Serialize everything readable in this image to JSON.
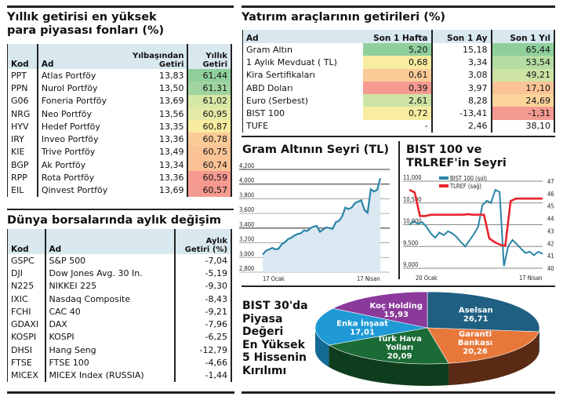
{
  "funds": {
    "title_line1": "Yıllık getirisi en yüksek",
    "title_line2": "para piyasası fonları (%)",
    "headers": {
      "kod": "Kod",
      "ad": "Ad",
      "ytd_1": "Yılbaşından",
      "ytd_2": "Getiri",
      "annual_1": "Yıllık",
      "annual_2": "Getiri"
    },
    "rows": [
      {
        "kod": "PPT",
        "ad": "Atlas Portföy",
        "ytd": "13,83",
        "annual": "61,44",
        "color": "#8fcf9c"
      },
      {
        "kod": "PPN",
        "ad": "Nurol Portföy",
        "ytd": "13,50",
        "annual": "61,31",
        "color": "#9fd4a0"
      },
      {
        "kod": "G06",
        "ad": "Foneria Portföy",
        "ytd": "13,69",
        "annual": "61,02",
        "color": "#d6e8a6"
      },
      {
        "kod": "NRG",
        "ad": "Neo Portföy",
        "ytd": "13,56",
        "annual": "60,95",
        "color": "#e3eba6"
      },
      {
        "kod": "HYV",
        "ad": "Hedef Portföy",
        "ytd": "13,35",
        "annual": "60,87",
        "color": "#f8eca0"
      },
      {
        "kod": "IRY",
        "ad": "Inveo Portföy",
        "ytd": "13,36",
        "annual": "60,78",
        "color": "#fbcb98"
      },
      {
        "kod": "KIE",
        "ad": "Trive Portföy",
        "ytd": "13,49",
        "annual": "60,75",
        "color": "#fbc497"
      },
      {
        "kod": "BGP",
        "ad": "Ak Portföy",
        "ytd": "13,34",
        "annual": "60,74",
        "color": "#fbc296"
      },
      {
        "kod": "RPP",
        "ad": "Rota Portföy",
        "ytd": "13,36",
        "annual": "60,59",
        "color": "#f69a90"
      },
      {
        "kod": "EIL",
        "ad": "Qinvest Portföy",
        "ytd": "13,69",
        "annual": "60,57",
        "color": "#f59a90"
      }
    ]
  },
  "world": {
    "title": "Dünya borsalarında aylık değişim",
    "headers": {
      "kod": "Kod",
      "ad": "Ad",
      "ret_1": "Aylık",
      "ret_2": "Getiri (%)"
    },
    "rows": [
      {
        "kod": "GSPC",
        "ad": "S&P 500",
        "ret": "-7,04"
      },
      {
        "kod": "DJI",
        "ad": "Dow Jones Avg. 30 In.",
        "ret": "-5,19"
      },
      {
        "kod": "N225",
        "ad": "NIKKEI 225",
        "ret": "-9,30"
      },
      {
        "kod": "IXIC",
        "ad": "Nasdaq Composite",
        "ret": "-8,43"
      },
      {
        "kod": "FCHI",
        "ad": "CAC 40",
        "ret": "-9,21"
      },
      {
        "kod": "GDAXI",
        "ad": "DAX",
        "ret": "-7,96"
      },
      {
        "kod": "KOSPI",
        "ad": "KOSPI",
        "ret": "-6,25"
      },
      {
        "kod": "DHSI",
        "ad": "Hang Seng",
        "ret": "-12,79"
      },
      {
        "kod": "FTSE",
        "ad": "FTSE 100",
        "ret": "-4,66"
      },
      {
        "kod": "MICEX",
        "ad": "MICEX Index (RUSSIA)",
        "ret": "-1,44"
      }
    ]
  },
  "instruments": {
    "title": "Yatırım araçlarının getirileri (%)",
    "headers": {
      "ad": "Ad",
      "w": "Son 1 Hafta",
      "m": "Son 1 Ay",
      "y": "Son 1 Yıl"
    },
    "rows": [
      {
        "ad": "Gram Altın",
        "w": "5,20",
        "m": "15,18",
        "y": "65,44",
        "wc": "#8fcf9c",
        "yc": "#8fcf9c"
      },
      {
        "ad": "1 Aylık Mevduat ( TL)",
        "w": "0,68",
        "m": "3,34",
        "y": "53,54",
        "wc": "#f8eca0",
        "yc": "#b5dca2"
      },
      {
        "ad": "Kira Sertifikaları",
        "w": "0,61",
        "m": "3,08",
        "y": "49,21",
        "wc": "#fbcb98",
        "yc": "#cde4a4"
      },
      {
        "ad": "ABD Doları",
        "w": "0,39",
        "m": "3,97",
        "y": "17,10",
        "wc": "#f59a90",
        "yc": "#fbc497"
      },
      {
        "ad": "Euro (Serbest)",
        "w": "2,61",
        "m": "8,28",
        "y": "24,69",
        "wc": "#cde4a4",
        "yc": "#fbd49a"
      },
      {
        "ad": "BIST 100",
        "w": "0,72",
        "m": "-13,41",
        "y": "-1,31",
        "wc": "#f8eca0",
        "yc": "#f59a90"
      },
      {
        "ad": "TUFE",
        "w": "-",
        "m": "2,46",
        "y": "38,10",
        "wc": "#ffffff",
        "yc": "#ffffff"
      }
    ]
  },
  "chart_data": [
    {
      "type": "area",
      "title": "Gram Altının Seyri (TL)",
      "xlabel": "",
      "ylabel": "",
      "x_ticks": [
        "17 Ocak",
        "17 Nisan"
      ],
      "y_ticks": [
        "2,800",
        "3,000",
        "3,200",
        "3,400",
        "3,600",
        "3,800",
        "4,000",
        "4,200"
      ],
      "ylim": [
        2800,
        4200
      ],
      "series": [
        {
          "name": "Gram Altın (TL)",
          "color": "#2a84a6",
          "values": [
            3040,
            3090,
            3110,
            3130,
            3110,
            3120,
            3180,
            3210,
            3250,
            3270,
            3300,
            3320,
            3330,
            3370,
            3360,
            3400,
            3420,
            3430,
            3350,
            3380,
            3410,
            3400,
            3390,
            3480,
            3500,
            3560,
            3680,
            3660,
            3680,
            3740,
            3760,
            3780,
            3650,
            3610,
            3930,
            3900,
            3920,
            4080
          ]
        }
      ],
      "grid": true
    },
    {
      "type": "line",
      "title": "BIST 100 ve TRLREF'in Seyri",
      "x_ticks": [
        "20 Ocak",
        "17 Nisan"
      ],
      "y_ticks_left": [
        "9,000",
        "9,500",
        "10,000",
        "10,500",
        "11,000"
      ],
      "y_ticks_right": [
        "40",
        "41",
        "42",
        "43",
        "44",
        "45",
        "46",
        "47"
      ],
      "ylim_left": [
        9000,
        11000
      ],
      "ylim_right": [
        40,
        47
      ],
      "legend": [
        "BIST 100 (sol)",
        "TLREF (sağ)"
      ],
      "series": [
        {
          "name": "BIST 100 (sol)",
          "axis": "left",
          "color": "#2a84a6",
          "values": [
            10000,
            10080,
            10020,
            10060,
            9950,
            9800,
            9700,
            9820,
            9760,
            9850,
            9800,
            9720,
            9600,
            9500,
            9640,
            9780,
            9950,
            10450,
            10550,
            10500,
            10800,
            10750,
            9050,
            9500,
            9650,
            9550,
            9450,
            9350,
            9380,
            9300,
            9380,
            9330
          ]
        },
        {
          "name": "TLREF (sağ)",
          "axis": "right",
          "color": "#e8232b",
          "values": [
            46.3,
            46.1,
            44.2,
            44.2,
            44.3,
            44.3,
            44.3,
            44.3,
            44.3,
            44.3,
            44.3,
            44.35,
            44.3,
            44.3,
            44.3,
            42.4,
            42.1,
            41.9,
            41.8,
            45.4,
            45.6,
            45.6,
            45.6,
            45.6,
            45.6,
            45.6
          ]
        }
      ]
    },
    {
      "type": "pie",
      "title": "BIST 30'da Piyasa Değeri En Yüksek 5 Hissenin Kırılımı",
      "categories": [
        "Aselsan",
        "Garanti Bankası",
        "Türk Hava Yolları",
        "Enka İnşaat",
        "Koç Holding"
      ],
      "values": [
        26.71,
        20.26,
        20.09,
        17.01,
        15.93
      ],
      "labels": [
        "26,71",
        "20,26",
        "20,09",
        "17,01",
        "15,93"
      ],
      "colors": [
        "#1f5f82",
        "#e8773a",
        "#1b6b36",
        "#1f9ad6",
        "#8b3a9b"
      ]
    }
  ],
  "gold_chart": {
    "title": "Gram Altının Seyri (TL)"
  },
  "bist_chart": {
    "title_1": "BIST 100 ve",
    "title_2": "TRLREF'in Seyri"
  },
  "pie_chart": {
    "title_lines": [
      "BIST 30'da",
      "Piyasa",
      "Değeri",
      "En Yüksek",
      "5 Hissenin",
      "Kırılımı"
    ]
  }
}
